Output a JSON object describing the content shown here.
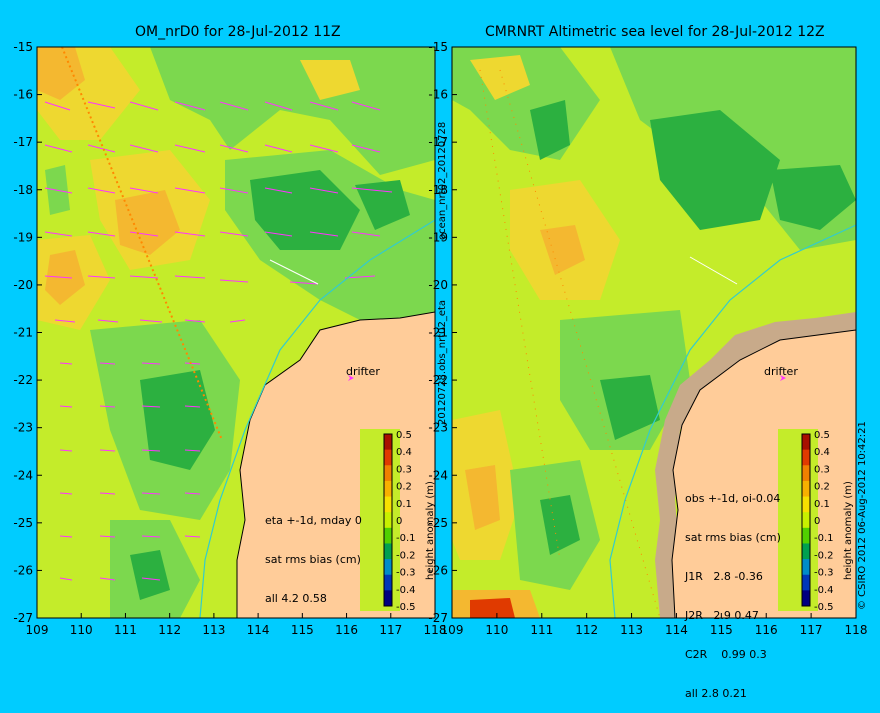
{
  "left_map": {
    "title": "OM_nrD0 for 28-Jul-2012 11Z",
    "stats": [
      "eta +-1d, mday 0",
      "sat rms bias (cm)",
      "all 4.2 0.58"
    ],
    "drifter_label": "drifter"
  },
  "right_map": {
    "title": "CMRNRT Altimetric sea level  for 28-Jul-2012 12Z",
    "stats": [
      "obs +-1d, oi-0.04",
      "sat rms bias (cm)",
      "J1R   2.8 -0.36",
      "J2R   2.9 0.47",
      "C2R    0.99 0.3",
      "all 2.8 0.21"
    ],
    "drifter_label": "drifter"
  },
  "side_labels": {
    "middle": "20120728.obs_nrt02_eta",
    "middle_top": "ocean_nrt02_20120728",
    "right": "© CSIRO 2012  06-Aug-2012 10:42:21"
  },
  "colorbar": {
    "label": "height anomaly (m)",
    "ticks": [
      "0.5",
      "0.4",
      "0.3",
      "0.2",
      "0.1",
      "0",
      "-0.1",
      "-0.2",
      "-0.3",
      "-0.4",
      "-0.5"
    ],
    "colors": [
      "#a81000",
      "#e03a00",
      "#f08000",
      "#f8b000",
      "#f8e000",
      "#c8f000",
      "#50d000",
      "#00a050",
      "#008cc8",
      "#0038b8",
      "#000080"
    ]
  },
  "chart_data": {
    "type": "heatmap",
    "x_ticks": [
      "109",
      "110",
      "111",
      "112",
      "113",
      "114",
      "115",
      "116",
      "117",
      "118"
    ],
    "y_ticks": [
      "-15",
      "-16",
      "-17",
      "-18",
      "-19",
      "-20",
      "-21",
      "-22",
      "-23",
      "-24",
      "-25",
      "-26",
      "-27"
    ],
    "xlim": [
      109,
      118
    ],
    "ylim": [
      -27,
      -15
    ],
    "value_range": [
      -0.5,
      0.5
    ],
    "colors": {
      "land": "#ffcc99",
      "land_flagged": "#c8aa8a",
      "current_vector": "#ff33ff",
      "satellite_track": "#ff8800",
      "coast_contour": "#33cccc"
    }
  }
}
